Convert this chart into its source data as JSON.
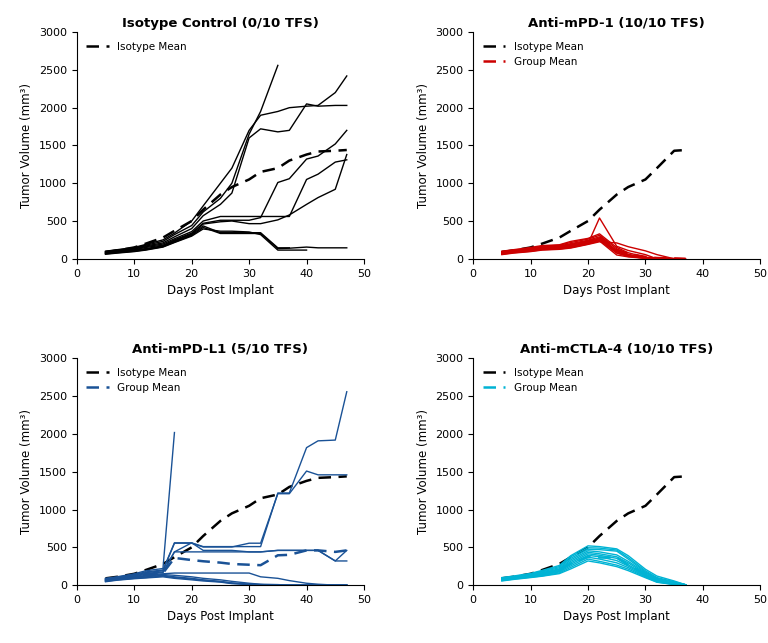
{
  "titles": [
    "Isotype Control (0/10 TFS)",
    "Anti-mPD-1 (10/10 TFS)",
    "Anti-mPD-L1 (5/10 TFS)",
    "Anti-mCTLA-4 (10/10 TFS)"
  ],
  "xlabel": "Days Post Implant",
  "ylabel": "Tumor Volume (mm³)",
  "ylim": [
    0,
    3000
  ],
  "xlim": [
    0,
    50
  ],
  "yticks": [
    0,
    500,
    1000,
    1500,
    2000,
    2500,
    3000
  ],
  "xticks": [
    0,
    10,
    20,
    30,
    40,
    50
  ],
  "isotype_mean_p1": {
    "x": [
      5,
      7,
      10,
      12,
      15,
      17,
      20,
      22,
      25,
      27,
      30,
      32,
      35,
      37,
      40,
      42,
      45,
      47
    ],
    "y": [
      90,
      110,
      150,
      200,
      280,
      370,
      500,
      650,
      850,
      950,
      1050,
      1150,
      1200,
      1300,
      1380,
      1420,
      1430,
      1440
    ]
  },
  "isotype_mean_p2": {
    "x": [
      5,
      7,
      10,
      12,
      15,
      17,
      20,
      22,
      25,
      27,
      30,
      32,
      35,
      37
    ],
    "y": [
      90,
      110,
      150,
      200,
      280,
      370,
      500,
      650,
      850,
      950,
      1050,
      1200,
      1430,
      1440
    ]
  },
  "isotype_mean_p3": {
    "x": [
      5,
      7,
      10,
      12,
      15,
      17,
      20,
      22,
      25,
      27,
      30,
      32,
      35,
      37,
      40,
      42,
      45,
      47
    ],
    "y": [
      90,
      110,
      150,
      200,
      280,
      370,
      500,
      650,
      850,
      950,
      1050,
      1150,
      1200,
      1300,
      1380,
      1420,
      1430,
      1440
    ]
  },
  "isotype_mean_p4": {
    "x": [
      5,
      7,
      10,
      12,
      15,
      17,
      20,
      22,
      25,
      27,
      30,
      32,
      35,
      37
    ],
    "y": [
      90,
      110,
      150,
      200,
      280,
      370,
      500,
      650,
      850,
      950,
      1050,
      1200,
      1430,
      1440
    ]
  },
  "panel1_lines": [
    {
      "x": [
        5,
        7,
        10,
        12,
        15,
        17,
        20,
        22,
        25,
        27,
        30,
        32,
        35,
        37,
        40,
        42,
        45,
        47
      ],
      "y": [
        100,
        120,
        150,
        190,
        250,
        340,
        500,
        700,
        1000,
        1200,
        1700,
        1900,
        1950,
        2000,
        2020,
        2030,
        2200,
        2420
      ]
    },
    {
      "x": [
        5,
        7,
        10,
        12,
        15,
        17,
        20,
        22,
        25,
        27,
        30,
        32,
        35
      ],
      "y": [
        95,
        115,
        145,
        180,
        230,
        320,
        440,
        620,
        800,
        1000,
        1650,
        1950,
        2560
      ]
    },
    {
      "x": [
        5,
        7,
        10,
        12,
        15,
        17,
        20,
        22,
        25,
        27,
        30,
        32,
        35,
        37,
        40,
        42,
        45,
        47
      ],
      "y": [
        90,
        110,
        140,
        170,
        210,
        290,
        400,
        570,
        720,
        870,
        1600,
        1720,
        1680,
        1700,
        2050,
        2020,
        2030,
        2030
      ]
    },
    {
      "x": [
        5,
        7,
        10,
        12,
        15,
        17,
        20,
        22,
        25,
        27,
        30,
        32,
        35,
        37,
        40,
        42,
        45,
        47
      ],
      "y": [
        85,
        100,
        130,
        160,
        195,
        265,
        360,
        500,
        560,
        560,
        560,
        560,
        560,
        560,
        1050,
        1120,
        1280,
        1310
      ]
    },
    {
      "x": [
        5,
        7,
        10,
        12,
        15,
        17,
        20,
        22,
        25,
        27,
        30,
        32,
        35,
        37,
        40,
        42,
        45,
        47
      ],
      "y": [
        80,
        95,
        120,
        150,
        180,
        250,
        340,
        470,
        510,
        510,
        510,
        545,
        1010,
        1060,
        1320,
        1360,
        1520,
        1700
      ]
    },
    {
      "x": [
        5,
        7,
        10,
        12,
        15,
        17,
        20,
        22,
        25,
        27,
        30,
        32,
        35,
        37,
        40,
        42,
        45,
        47
      ],
      "y": [
        75,
        90,
        115,
        135,
        170,
        240,
        330,
        460,
        490,
        500,
        465,
        465,
        515,
        580,
        720,
        810,
        920,
        1380
      ]
    },
    {
      "x": [
        5,
        7,
        10,
        12,
        15,
        17,
        20,
        22,
        25,
        27,
        30,
        32,
        35,
        37
      ],
      "y": [
        70,
        85,
        105,
        125,
        165,
        230,
        320,
        435,
        345,
        345,
        345,
        345,
        145,
        145
      ]
    },
    {
      "x": [
        5,
        7,
        10,
        12,
        15,
        17,
        20,
        22,
        25,
        27,
        30,
        32,
        35,
        37,
        40,
        42,
        45,
        47
      ],
      "y": [
        65,
        80,
        100,
        120,
        160,
        220,
        310,
        415,
        335,
        335,
        335,
        335,
        135,
        140,
        155,
        145,
        145,
        145
      ]
    },
    {
      "x": [
        5,
        7,
        10,
        12,
        15,
        17,
        20,
        22,
        25,
        27,
        30,
        32,
        35,
        37,
        40
      ],
      "y": [
        60,
        75,
        95,
        115,
        155,
        215,
        300,
        395,
        365,
        365,
        355,
        320,
        115,
        115,
        115
      ]
    }
  ],
  "panel2_lines": [
    {
      "x": [
        5,
        7,
        10,
        12,
        15,
        17,
        20,
        22,
        25,
        27,
        30,
        32,
        35,
        37
      ],
      "y": [
        100,
        120,
        150,
        175,
        185,
        230,
        270,
        330,
        150,
        80,
        20,
        10,
        5,
        0
      ]
    },
    {
      "x": [
        5,
        7,
        10,
        12,
        15,
        17,
        20,
        22,
        25,
        27,
        30,
        32,
        35
      ],
      "y": [
        95,
        115,
        140,
        165,
        180,
        215,
        260,
        310,
        130,
        60,
        15,
        5,
        0
      ]
    },
    {
      "x": [
        5,
        7,
        10,
        12,
        15,
        17,
        20,
        22,
        25,
        27,
        30,
        32,
        35
      ],
      "y": [
        90,
        110,
        130,
        155,
        170,
        200,
        245,
        290,
        110,
        50,
        10,
        5,
        0
      ]
    },
    {
      "x": [
        5,
        7,
        10,
        12,
        15,
        17,
        20,
        22,
        25,
        27,
        30,
        32,
        35
      ],
      "y": [
        85,
        105,
        125,
        148,
        163,
        190,
        235,
        275,
        100,
        45,
        10,
        5,
        0
      ]
    },
    {
      "x": [
        5,
        7,
        10,
        12,
        15,
        17,
        20,
        22,
        25,
        27,
        30,
        32,
        35
      ],
      "y": [
        80,
        100,
        120,
        140,
        155,
        180,
        225,
        265,
        95,
        40,
        10,
        5,
        0
      ]
    },
    {
      "x": [
        5,
        7,
        10,
        12,
        15,
        17,
        20,
        22,
        25,
        27,
        30,
        32,
        35
      ],
      "y": [
        75,
        95,
        115,
        135,
        148,
        170,
        215,
        255,
        80,
        35,
        5,
        5,
        0
      ]
    },
    {
      "x": [
        5,
        7,
        10,
        12,
        15,
        17,
        20,
        22,
        25,
        27,
        30,
        32,
        35
      ],
      "y": [
        70,
        90,
        110,
        130,
        142,
        162,
        205,
        245,
        75,
        30,
        10,
        5,
        0
      ]
    },
    {
      "x": [
        5,
        7,
        10,
        12,
        15,
        17,
        20,
        22,
        25,
        27,
        30,
        32
      ],
      "y": [
        65,
        85,
        105,
        125,
        135,
        155,
        200,
        540,
        165,
        110,
        55,
        0
      ]
    },
    {
      "x": [
        5,
        7,
        10,
        12,
        15,
        17,
        20,
        22,
        25,
        27,
        30,
        32,
        35
      ],
      "y": [
        60,
        80,
        100,
        120,
        130,
        148,
        195,
        235,
        50,
        25,
        5,
        5,
        0
      ]
    },
    {
      "x": [
        5,
        7,
        10,
        12,
        15,
        17,
        20,
        22,
        25,
        27,
        30,
        32,
        35
      ],
      "y": [
        55,
        75,
        95,
        115,
        125,
        142,
        190,
        225,
        210,
        160,
        105,
        55,
        0
      ]
    }
  ],
  "panel2_mean_x": [
    5,
    7,
    10,
    12,
    15,
    17,
    20,
    22,
    25,
    27,
    30,
    32,
    35,
    37
  ],
  "panel2_mean_y": [
    78,
    98,
    120,
    141,
    153,
    180,
    224,
    297,
    119,
    68,
    25,
    10,
    5,
    0
  ],
  "panel3_lines": [
    {
      "x": [
        5,
        7,
        10,
        12,
        15,
        17
      ],
      "y": [
        90,
        110,
        150,
        190,
        220,
        2020
      ]
    },
    {
      "x": [
        5,
        7,
        10,
        12,
        15,
        17,
        20,
        22,
        25,
        27,
        30,
        32,
        35,
        37,
        40,
        42,
        45,
        47
      ],
      "y": [
        85,
        105,
        140,
        175,
        200,
        560,
        560,
        510,
        510,
        510,
        510,
        510,
        1220,
        1220,
        1820,
        1910,
        1920,
        2560
      ]
    },
    {
      "x": [
        5,
        7,
        10,
        12,
        15,
        17,
        20,
        22,
        25,
        27,
        30,
        32,
        35,
        37,
        40,
        42,
        45,
        47
      ],
      "y": [
        80,
        100,
        130,
        165,
        190,
        555,
        555,
        505,
        505,
        505,
        555,
        555,
        1210,
        1210,
        1510,
        1460,
        1460,
        1460
      ]
    },
    {
      "x": [
        5,
        7,
        10,
        12,
        15,
        17,
        20,
        22,
        25,
        27,
        30,
        32,
        35,
        37,
        40,
        42,
        45,
        47
      ],
      "y": [
        75,
        95,
        120,
        155,
        175,
        440,
        560,
        460,
        460,
        460,
        440,
        440,
        460,
        460,
        460,
        460,
        320,
        320
      ]
    },
    {
      "x": [
        5,
        7,
        10,
        12,
        15,
        17,
        20,
        22,
        25,
        27,
        30,
        32,
        35,
        37,
        40,
        42,
        45,
        47
      ],
      "y": [
        70,
        90,
        110,
        145,
        165,
        440,
        440,
        440,
        440,
        440,
        440,
        440,
        460,
        460,
        460,
        460,
        320,
        460
      ]
    },
    {
      "x": [
        5,
        7,
        10,
        12,
        15,
        17,
        20,
        22,
        25,
        27,
        30,
        32,
        35,
        37,
        40,
        42,
        45,
        47
      ],
      "y": [
        65,
        85,
        105,
        130,
        150,
        160,
        160,
        160,
        160,
        160,
        160,
        110,
        90,
        60,
        25,
        12,
        0,
        0
      ]
    },
    {
      "x": [
        5,
        7,
        10,
        12,
        15,
        17,
        20,
        22,
        25,
        27,
        30,
        32,
        35,
        37,
        40,
        42,
        45,
        47
      ],
      "y": [
        60,
        80,
        100,
        120,
        140,
        130,
        110,
        90,
        70,
        50,
        25,
        12,
        7,
        0,
        0,
        0,
        0,
        0
      ]
    },
    {
      "x": [
        5,
        7,
        10,
        12,
        15,
        17,
        20,
        22,
        25,
        27,
        30,
        32,
        35,
        37,
        40,
        42,
        45,
        47
      ],
      "y": [
        55,
        75,
        95,
        110,
        130,
        110,
        90,
        70,
        50,
        30,
        12,
        7,
        0,
        0,
        0,
        0,
        0,
        0
      ]
    },
    {
      "x": [
        5,
        7,
        10,
        12,
        15,
        17,
        20,
        22,
        25,
        27,
        30,
        32,
        35,
        37,
        40,
        42,
        45,
        47
      ],
      "y": [
        50,
        70,
        90,
        100,
        120,
        100,
        80,
        65,
        45,
        25,
        12,
        7,
        0,
        0,
        0,
        0,
        0,
        0
      ]
    },
    {
      "x": [
        5,
        7,
        10,
        12,
        15,
        17,
        20,
        22,
        25,
        27,
        30,
        32,
        35,
        37,
        40,
        42,
        45,
        47
      ],
      "y": [
        45,
        65,
        85,
        95,
        110,
        90,
        70,
        55,
        40,
        20,
        7,
        0,
        0,
        0,
        0,
        0,
        0,
        0
      ]
    }
  ],
  "panel3_mean_x": [
    5,
    7,
    10,
    12,
    15,
    17,
    20,
    22,
    25,
    27,
    30,
    32,
    35,
    37,
    40,
    42,
    45,
    47
  ],
  "panel3_mean_y": [
    68,
    88,
    112,
    138,
    160,
    360,
    332,
    316,
    298,
    280,
    270,
    264,
    395,
    401,
    460,
    460,
    440,
    460
  ],
  "panel4_lines": [
    {
      "x": [
        5,
        7,
        10,
        12,
        15,
        17,
        20,
        22,
        25,
        27,
        30,
        32,
        35,
        37
      ],
      "y": [
        100,
        120,
        155,
        195,
        260,
        390,
        520,
        510,
        480,
        390,
        210,
        120,
        55,
        5
      ]
    },
    {
      "x": [
        5,
        7,
        10,
        12,
        15,
        17,
        20,
        22,
        25,
        27,
        30,
        32,
        35,
        37
      ],
      "y": [
        95,
        115,
        148,
        185,
        245,
        375,
        495,
        490,
        465,
        365,
        190,
        100,
        45,
        5
      ]
    },
    {
      "x": [
        5,
        7,
        10,
        12,
        15,
        17,
        20,
        22,
        25,
        27,
        30,
        32,
        35,
        37
      ],
      "y": [
        90,
        110,
        140,
        175,
        230,
        355,
        475,
        470,
        450,
        345,
        175,
        90,
        35,
        5
      ]
    },
    {
      "x": [
        5,
        7,
        10,
        12,
        15,
        17,
        20,
        22,
        25,
        27,
        30,
        32,
        35,
        37
      ],
      "y": [
        85,
        105,
        132,
        165,
        215,
        335,
        455,
        440,
        400,
        315,
        165,
        75,
        25,
        5
      ]
    },
    {
      "x": [
        5,
        7,
        10,
        12,
        15,
        17,
        20,
        22,
        25,
        27,
        30,
        32,
        35,
        37
      ],
      "y": [
        80,
        100,
        125,
        155,
        205,
        315,
        435,
        415,
        375,
        295,
        150,
        68,
        18,
        5
      ]
    },
    {
      "x": [
        5,
        7,
        10,
        12,
        15,
        17,
        20,
        22,
        25,
        27,
        30,
        32,
        35,
        37
      ],
      "y": [
        75,
        95,
        120,
        145,
        195,
        295,
        415,
        395,
        355,
        270,
        138,
        58,
        14,
        5
      ]
    },
    {
      "x": [
        5,
        7,
        10,
        12,
        15,
        17,
        20,
        22,
        25,
        27,
        30,
        32,
        35,
        37
      ],
      "y": [
        70,
        90,
        115,
        138,
        185,
        275,
        395,
        375,
        325,
        252,
        128,
        52,
        14,
        5
      ]
    },
    {
      "x": [
        5,
        7,
        10,
        12,
        15,
        17,
        20,
        22,
        25,
        27,
        30,
        32,
        35,
        37
      ],
      "y": [
        65,
        85,
        110,
        130,
        175,
        255,
        370,
        345,
        295,
        232,
        118,
        48,
        10,
        5
      ]
    },
    {
      "x": [
        5,
        7,
        10,
        12,
        15,
        17,
        20,
        22,
        25,
        27,
        30,
        32,
        35,
        37
      ],
      "y": [
        60,
        80,
        105,
        122,
        162,
        235,
        345,
        315,
        265,
        212,
        108,
        42,
        8,
        5
      ]
    },
    {
      "x": [
        5,
        7,
        10,
        12,
        15,
        17,
        20,
        22,
        25,
        27,
        30,
        32,
        35,
        37
      ],
      "y": [
        55,
        75,
        100,
        118,
        152,
        215,
        320,
        295,
        245,
        192,
        98,
        38,
        8,
        5
      ]
    }
  ],
  "panel4_mean_x": [
    5,
    7,
    10,
    12,
    15,
    17,
    20,
    22,
    25,
    27,
    30,
    32,
    35,
    37
  ],
  "panel4_mean_y": [
    78,
    98,
    115,
    143,
    203,
    285,
    373,
    365,
    366,
    267,
    148,
    69,
    24,
    5
  ],
  "black": "#000000",
  "red": "#cc0000",
  "blue": "#1a5296",
  "cyan": "#00b3d4"
}
